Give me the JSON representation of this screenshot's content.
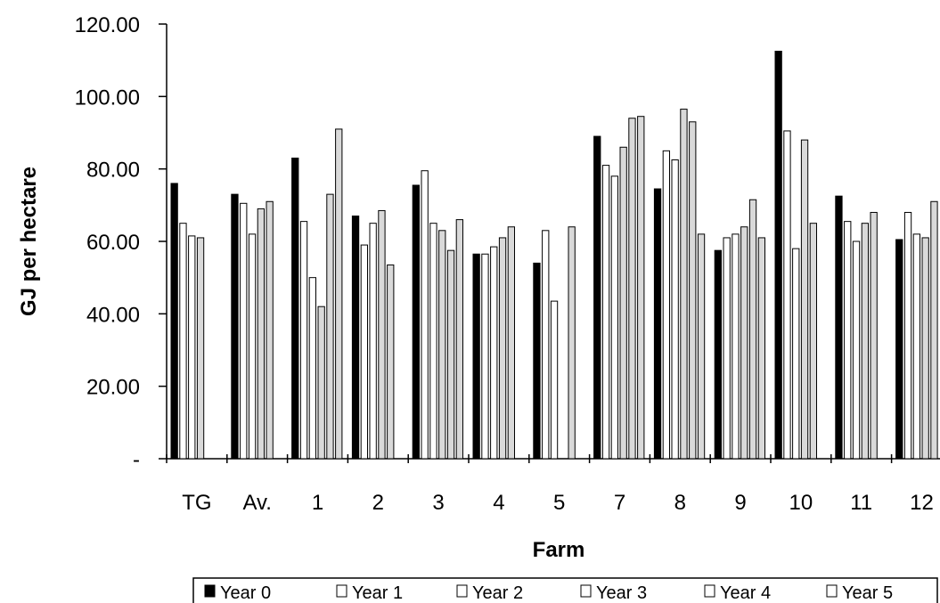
{
  "chart_data": {
    "type": "bar",
    "xlabel": "Farm",
    "ylabel": "GJ per hectare",
    "ylim": [
      0,
      120
    ],
    "y_ticks": [
      {
        "value": 0,
        "label": "-"
      },
      {
        "value": 20,
        "label": "20.00"
      },
      {
        "value": 40,
        "label": "40.00"
      },
      {
        "value": 60,
        "label": "60.00"
      },
      {
        "value": 80,
        "label": "80.00"
      },
      {
        "value": 100,
        "label": "100.00"
      },
      {
        "value": 120,
        "label": "120.00"
      }
    ],
    "categories": [
      "TG",
      "Av.",
      "1",
      "2",
      "3",
      "4",
      "5",
      "7",
      "8",
      "9",
      "10",
      "11",
      "12"
    ],
    "legend_position": "bottom",
    "series": [
      {
        "name": "Year 0",
        "color": "#000000",
        "values": [
          76,
          73,
          83,
          67,
          75.5,
          56.5,
          54,
          89,
          74.5,
          57.5,
          112.5,
          72.5,
          60.5
        ]
      },
      {
        "name": "Year 1",
        "color": "#ffffff",
        "values": [
          65,
          70.5,
          65.5,
          59,
          79.5,
          56.5,
          63,
          81,
          85,
          61,
          90.5,
          65.5,
          68
        ]
      },
      {
        "name": "Year 2",
        "color": "#ffffff",
        "values": [
          61.5,
          62,
          50,
          65,
          65,
          58.5,
          43.5,
          78,
          82.5,
          62,
          58,
          60,
          62
        ]
      },
      {
        "name": "Year 3",
        "color": "#d9d9d9",
        "values": [
          61,
          69,
          42,
          68.5,
          63,
          61,
          null,
          86,
          96.5,
          64,
          88,
          65,
          61
        ]
      },
      {
        "name": "Year 4",
        "color": "#d9d9d9",
        "values": [
          null,
          71,
          73,
          53.5,
          57.5,
          64,
          64,
          94,
          93,
          71.5,
          65,
          68,
          71
        ]
      },
      {
        "name": "Year 5",
        "color": "#d9d9d9",
        "values": [
          null,
          null,
          91,
          null,
          66,
          null,
          null,
          94.5,
          62,
          61,
          null,
          null,
          null
        ]
      }
    ]
  }
}
